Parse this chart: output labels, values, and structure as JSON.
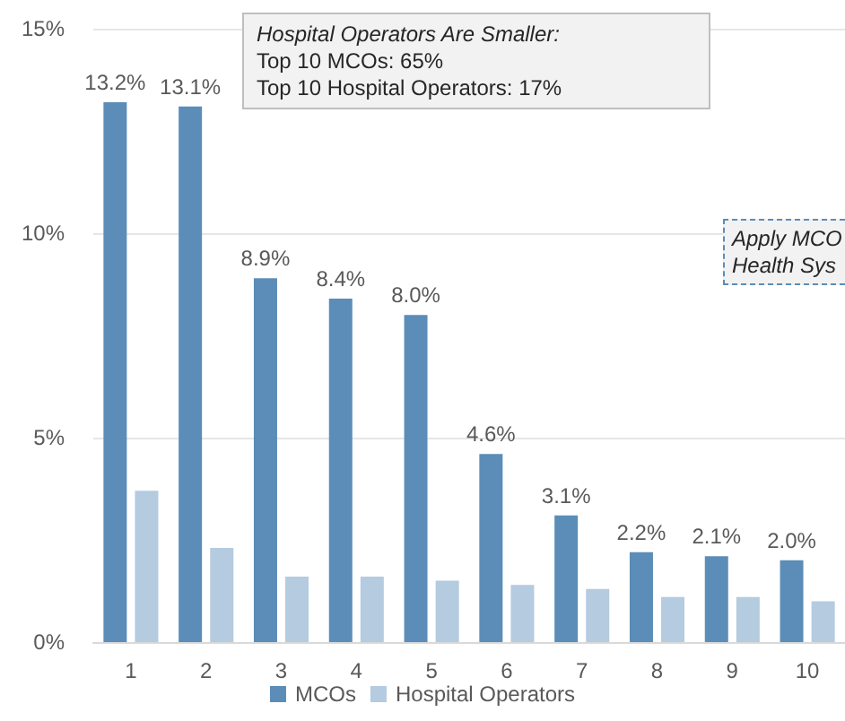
{
  "chart_data": {
    "type": "bar",
    "categories": [
      "1",
      "2",
      "3",
      "4",
      "5",
      "6",
      "7",
      "8",
      "9",
      "10"
    ],
    "series": [
      {
        "name": "MCOs",
        "color": "#5b8db8",
        "values": [
          13.2,
          13.1,
          8.9,
          8.4,
          8.0,
          4.6,
          3.1,
          2.2,
          2.1,
          2.0
        ],
        "value_labels": [
          "13.2%",
          "13.1%",
          "8.9%",
          "8.4%",
          "8.0%",
          "4.6%",
          "3.1%",
          "2.2%",
          "2.1%",
          "2.0%"
        ]
      },
      {
        "name": "Hospital Operators",
        "color": "#b4cbe0",
        "values": [
          3.7,
          2.3,
          1.6,
          1.6,
          1.5,
          1.4,
          1.3,
          1.1,
          1.1,
          1.0
        ]
      }
    ],
    "ylim": [
      0,
      15
    ],
    "yticks": [
      {
        "value": 0,
        "label": "0%"
      },
      {
        "value": 5,
        "label": "5%"
      },
      {
        "value": 10,
        "label": "10%"
      },
      {
        "value": 15,
        "label": "15%"
      }
    ],
    "grid": "y",
    "legend": "bottom",
    "annotations": [
      "Hospital Operators Are Smaller:\nTop 10 MCOs: 65%\nTop 10 Hospital Operators: 17%",
      "Apply MCO\nHealth Sys"
    ]
  }
}
